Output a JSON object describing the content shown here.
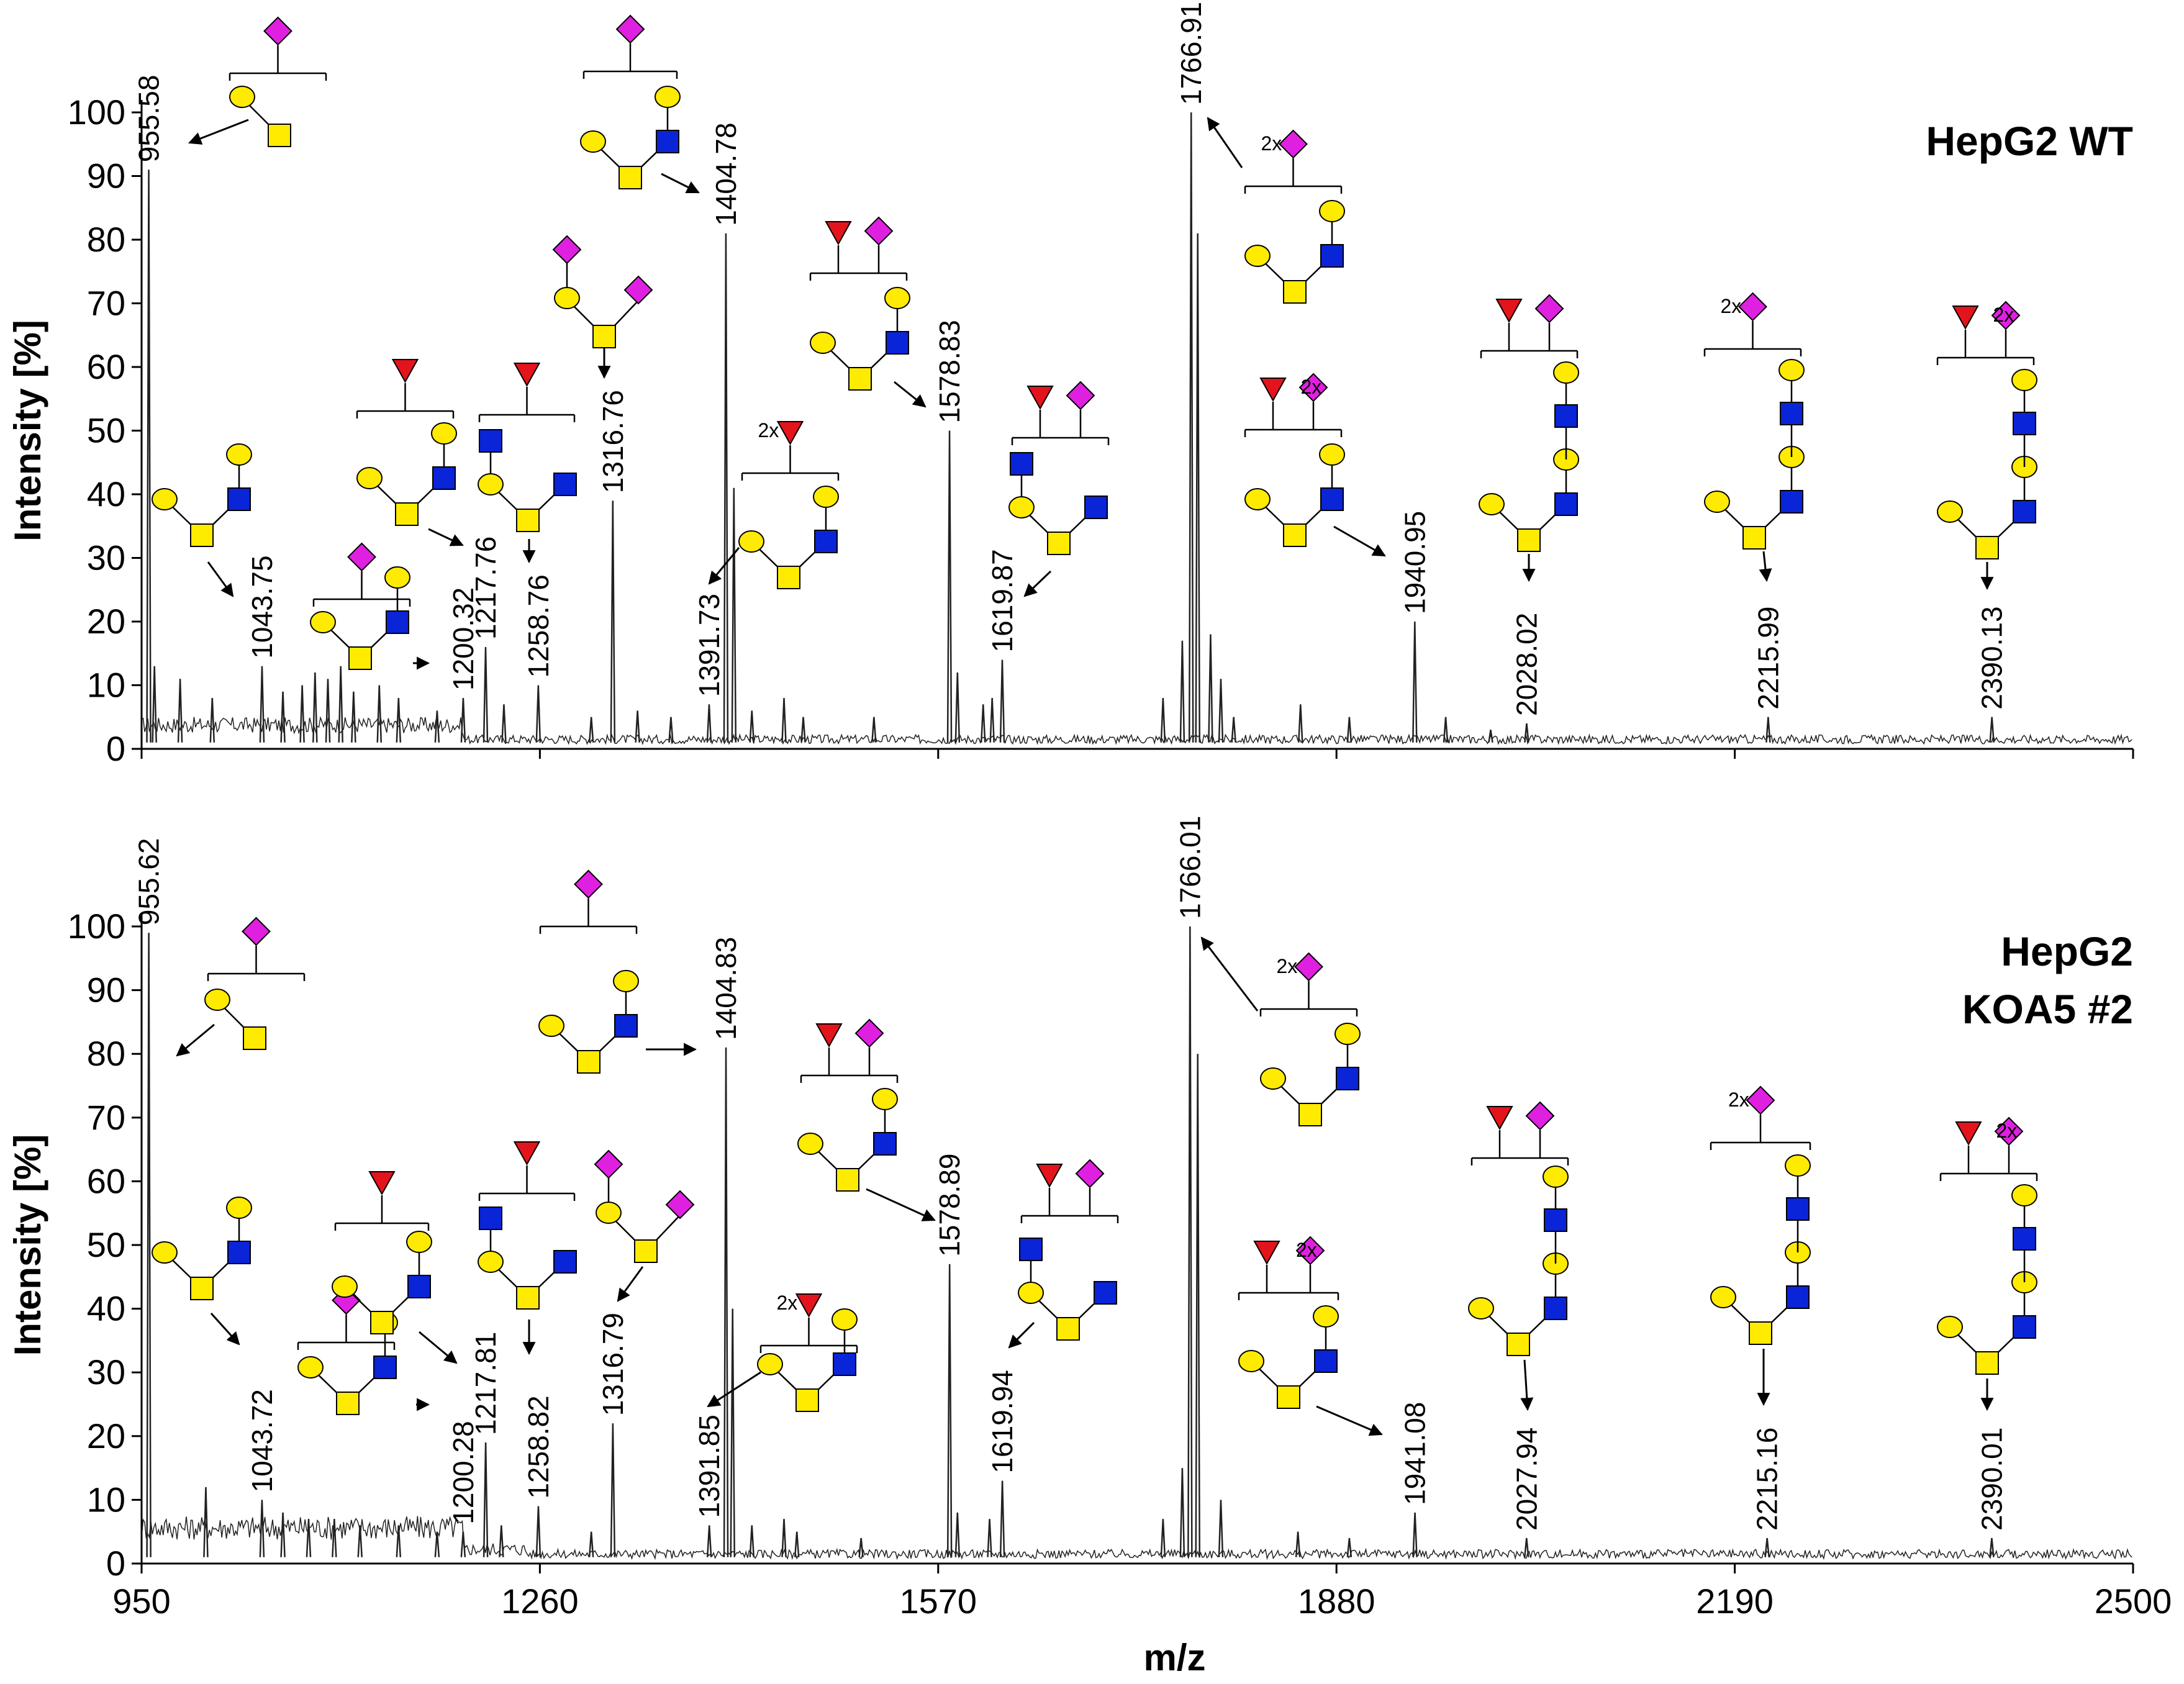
{
  "chart_data": [
    {
      "type": "line",
      "subtype": "mass-spectrum",
      "title": "HepG2 WT",
      "title_lines": [
        "HepG2 WT"
      ],
      "xlabel": "m/z",
      "ylabel": "Intensity [%]",
      "xlim": [
        950,
        2500
      ],
      "ylim": [
        0,
        100
      ],
      "yticks": [
        "0",
        "10",
        "20",
        "30",
        "40",
        "50",
        "60",
        "70",
        "80",
        "90",
        "100"
      ],
      "grid": false,
      "peaks": [
        {
          "mz": 955.58,
          "intensity": 91,
          "label": "955.58"
        },
        {
          "mz": 1043.75,
          "intensity": 13,
          "label": "1043.75"
        },
        {
          "mz": 1200.32,
          "intensity": 8,
          "label": "1200.32"
        },
        {
          "mz": 1217.76,
          "intensity": 16,
          "label": "1217.76"
        },
        {
          "mz": 1258.76,
          "intensity": 10,
          "label": "1258.76"
        },
        {
          "mz": 1316.76,
          "intensity": 39,
          "label": "1316.76"
        },
        {
          "mz": 1391.73,
          "intensity": 7,
          "label": "1391.73"
        },
        {
          "mz": 1404.78,
          "intensity": 81,
          "label": "1404.78"
        },
        {
          "mz": 1578.83,
          "intensity": 50,
          "label": "1578.83"
        },
        {
          "mz": 1619.87,
          "intensity": 14,
          "label": "1619.87"
        },
        {
          "mz": 1766.91,
          "intensity": 100,
          "label": "1766.91"
        },
        {
          "mz": 1940.95,
          "intensity": 20,
          "label": "1940.95"
        },
        {
          "mz": 2028.02,
          "intensity": 4,
          "label": "2028.02"
        },
        {
          "mz": 2215.99,
          "intensity": 5,
          "label": "2215.99"
        },
        {
          "mz": 2390.13,
          "intensity": 5,
          "label": "2390.13"
        }
      ],
      "minor_peaks": [
        [
          960,
          13
        ],
        [
          980,
          11
        ],
        [
          1005,
          8
        ],
        [
          1060,
          9
        ],
        [
          1075,
          10
        ],
        [
          1085,
          12
        ],
        [
          1095,
          11
        ],
        [
          1105,
          13
        ],
        [
          1115,
          9
        ],
        [
          1135,
          10
        ],
        [
          1150,
          8
        ],
        [
          1180,
          6
        ],
        [
          1232,
          7
        ],
        [
          1300,
          5
        ],
        [
          1336,
          6
        ],
        [
          1362,
          5
        ],
        [
          1411,
          41
        ],
        [
          1425,
          6
        ],
        [
          1450,
          8
        ],
        [
          1465,
          5
        ],
        [
          1520,
          5
        ],
        [
          1585,
          12
        ],
        [
          1605,
          7
        ],
        [
          1612,
          8
        ],
        [
          1745,
          8
        ],
        [
          1760,
          17
        ],
        [
          1772,
          81
        ],
        [
          1782,
          18
        ],
        [
          1790,
          11
        ],
        [
          1800,
          5
        ],
        [
          1852,
          7
        ],
        [
          1890,
          5
        ],
        [
          1965,
          5
        ],
        [
          2000,
          3
        ]
      ],
      "glycans": [
        {
          "anchor_mz": 955.58,
          "count_label": ""
        },
        {
          "anchor_mz": 1043.75,
          "count_label": ""
        },
        {
          "anchor_mz": 1200.32,
          "count_label": ""
        },
        {
          "anchor_mz": 1217.76,
          "count_label": ""
        },
        {
          "anchor_mz": 1258.76,
          "count_label": ""
        },
        {
          "anchor_mz": 1316.76,
          "count_label": ""
        },
        {
          "anchor_mz": 1391.73,
          "count_label": "2x"
        },
        {
          "anchor_mz": 1404.78,
          "count_label": ""
        },
        {
          "anchor_mz": 1578.83,
          "count_label": ""
        },
        {
          "anchor_mz": 1619.87,
          "count_label": ""
        },
        {
          "anchor_mz": 1766.91,
          "count_label": "2x"
        },
        {
          "anchor_mz": 1940.95,
          "count_label": "2x"
        },
        {
          "anchor_mz": 2028.02,
          "count_label": ""
        },
        {
          "anchor_mz": 2215.99,
          "count_label": "2x"
        },
        {
          "anchor_mz": 2390.13,
          "count_label": "2x"
        }
      ]
    },
    {
      "type": "line",
      "subtype": "mass-spectrum",
      "title": "HepG2 KOA5 #2",
      "title_lines": [
        "HepG2",
        "KOA5 #2"
      ],
      "xlabel": "m/z",
      "ylabel": "Intensity [%]",
      "xlim": [
        950,
        2500
      ],
      "ylim": [
        0,
        100
      ],
      "yticks": [
        "0",
        "10",
        "20",
        "30",
        "40",
        "50",
        "60",
        "70",
        "80",
        "90",
        "100"
      ],
      "xticks": [
        "950",
        "1260",
        "1570",
        "1880",
        "2190",
        "2500"
      ],
      "grid": false,
      "peaks": [
        {
          "mz": 955.62,
          "intensity": 99,
          "label": "955.62"
        },
        {
          "mz": 1043.72,
          "intensity": 10,
          "label": "1043.72"
        },
        {
          "mz": 1200.28,
          "intensity": 5,
          "label": "1200.28"
        },
        {
          "mz": 1217.81,
          "intensity": 19,
          "label": "1217.81"
        },
        {
          "mz": 1258.82,
          "intensity": 9,
          "label": "1258.82"
        },
        {
          "mz": 1316.79,
          "intensity": 22,
          "label": "1316.79"
        },
        {
          "mz": 1391.85,
          "intensity": 6,
          "label": "1391.85"
        },
        {
          "mz": 1404.83,
          "intensity": 81,
          "label": "1404.83"
        },
        {
          "mz": 1578.89,
          "intensity": 47,
          "label": "1578.89"
        },
        {
          "mz": 1619.94,
          "intensity": 13,
          "label": "1619.94"
        },
        {
          "mz": 1766.01,
          "intensity": 100,
          "label": "1766.01"
        },
        {
          "mz": 1941.08,
          "intensity": 8,
          "label": "1941.08"
        },
        {
          "mz": 2027.94,
          "intensity": 4,
          "label": "2027.94"
        },
        {
          "mz": 2215.16,
          "intensity": 4,
          "label": "2215.16"
        },
        {
          "mz": 2390.01,
          "intensity": 4,
          "label": "2390.01"
        }
      ],
      "minor_peaks": [
        [
          1000,
          12
        ],
        [
          1060,
          8
        ],
        [
          1080,
          7
        ],
        [
          1100,
          7
        ],
        [
          1120,
          6
        ],
        [
          1150,
          6
        ],
        [
          1180,
          5
        ],
        [
          1230,
          6
        ],
        [
          1300,
          5
        ],
        [
          1410,
          40
        ],
        [
          1425,
          6
        ],
        [
          1450,
          7
        ],
        [
          1460,
          5
        ],
        [
          1510,
          4
        ],
        [
          1585,
          8
        ],
        [
          1610,
          7
        ],
        [
          1745,
          7
        ],
        [
          1760,
          15
        ],
        [
          1772,
          80
        ],
        [
          1790,
          10
        ],
        [
          1850,
          5
        ],
        [
          1890,
          4
        ]
      ],
      "glycans": [
        {
          "anchor_mz": 955.62,
          "count_label": ""
        },
        {
          "anchor_mz": 1043.72,
          "count_label": ""
        },
        {
          "anchor_mz": 1200.28,
          "count_label": ""
        },
        {
          "anchor_mz": 1217.81,
          "count_label": ""
        },
        {
          "anchor_mz": 1258.82,
          "count_label": ""
        },
        {
          "anchor_mz": 1316.79,
          "count_label": ""
        },
        {
          "anchor_mz": 1391.85,
          "count_label": "2x"
        },
        {
          "anchor_mz": 1404.83,
          "count_label": ""
        },
        {
          "anchor_mz": 1578.89,
          "count_label": ""
        },
        {
          "anchor_mz": 1619.94,
          "count_label": ""
        },
        {
          "anchor_mz": 1766.01,
          "count_label": "2x"
        },
        {
          "anchor_mz": 1941.08,
          "count_label": "2x"
        },
        {
          "anchor_mz": 2027.94,
          "count_label": ""
        },
        {
          "anchor_mz": 2215.16,
          "count_label": "2x"
        },
        {
          "anchor_mz": 2390.01,
          "count_label": "2x"
        }
      ]
    }
  ],
  "colors": {
    "galactose": "#FFEB00",
    "glcnac": "#0A24D8",
    "fucose": "#E4141C",
    "sialic_acid": "#E020E0",
    "spectrum": "#222222"
  }
}
